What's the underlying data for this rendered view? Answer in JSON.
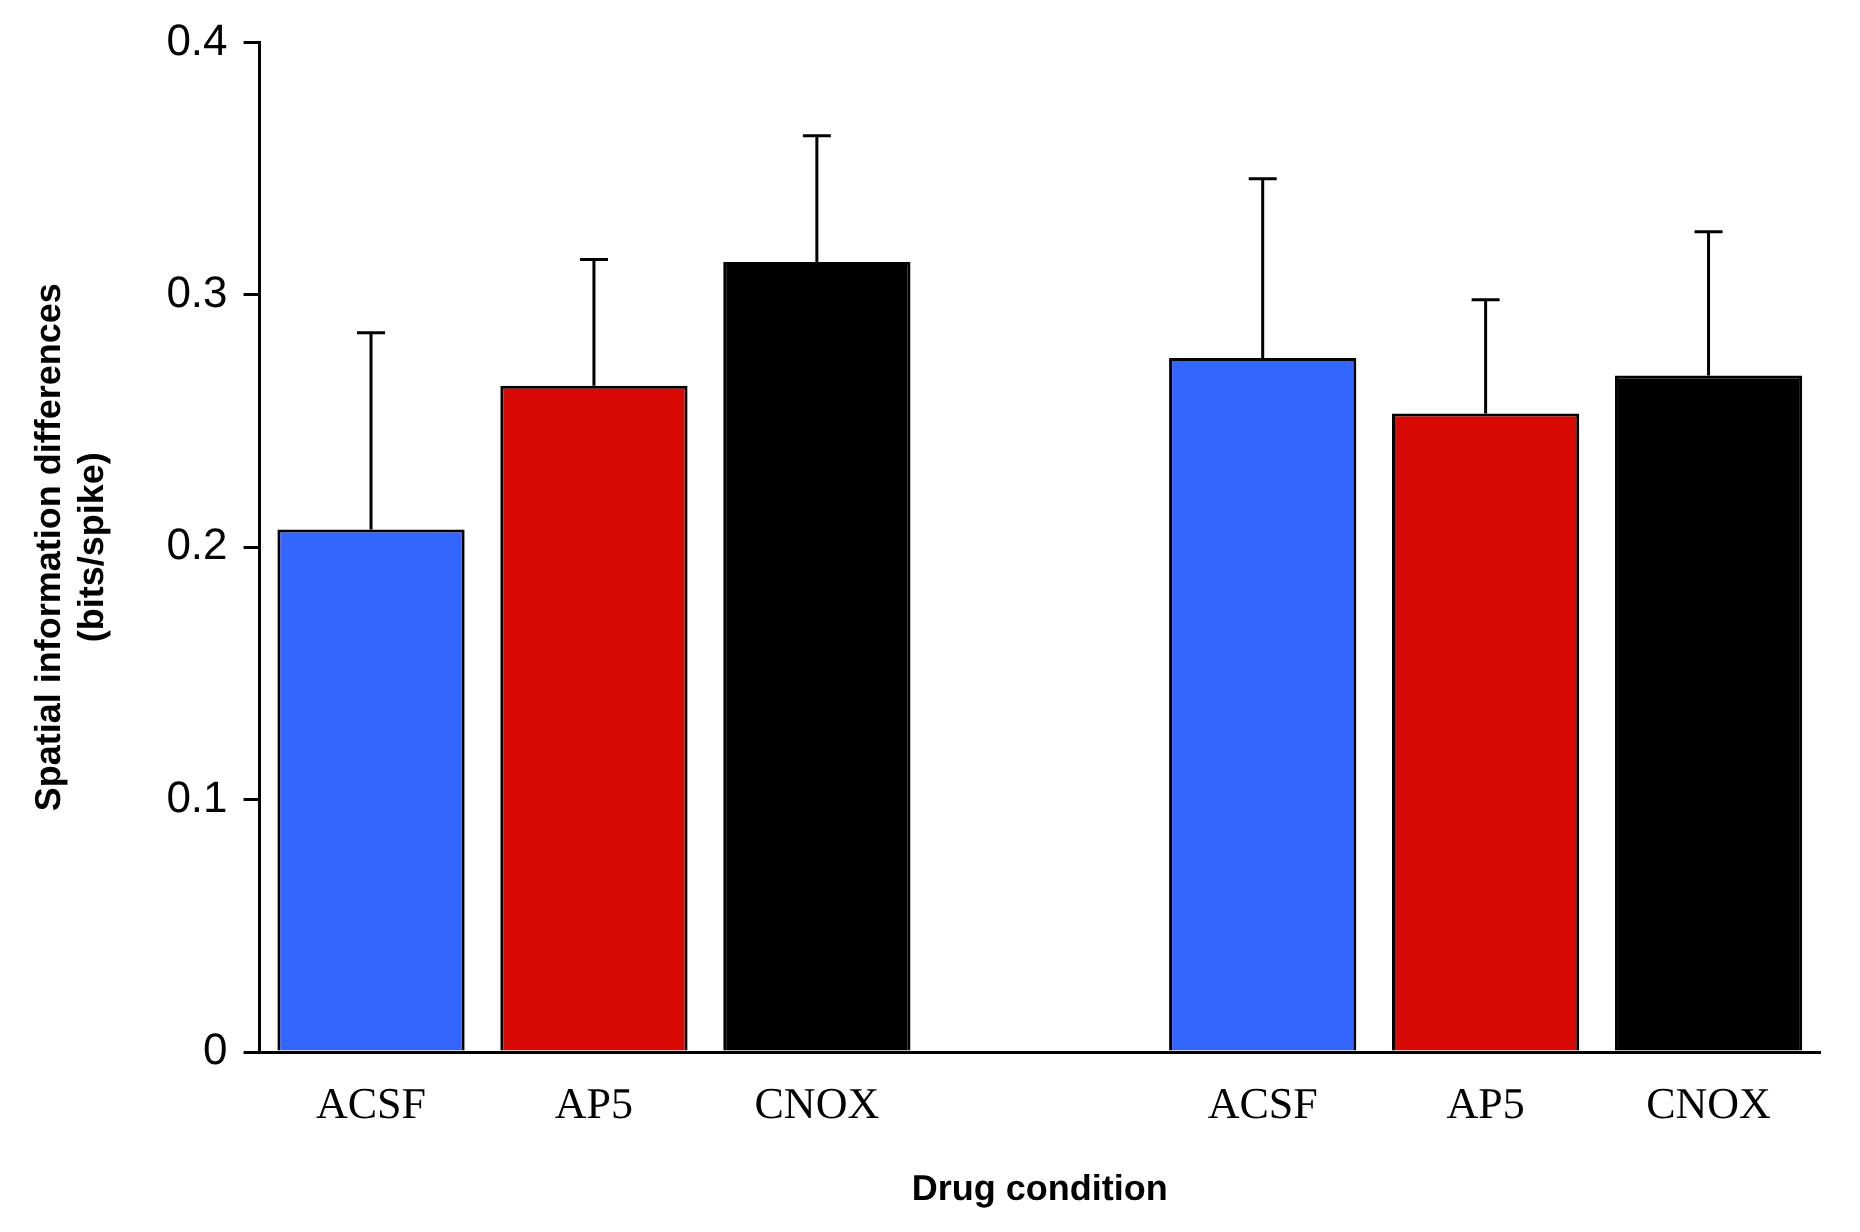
{
  "chart_data": {
    "type": "bar",
    "xlabel": "Drug condition",
    "ylabel": "Spatial information differences\n(bits/spike)",
    "categories": [
      "ACSF",
      "AP5",
      "CNOX",
      null,
      "ACSF",
      "AP5",
      "CNOX"
    ],
    "values": [
      0.207,
      0.264,
      0.313,
      null,
      0.275,
      0.253,
      0.268
    ],
    "colors": [
      "#3366ff",
      "#d90a03",
      "#000000",
      null,
      "#3366ff",
      "#d90a03",
      "#000000"
    ],
    "errors": [
      [
        0.207,
        0.285
      ],
      [
        0.264,
        0.314
      ],
      [
        0.313,
        0.363
      ],
      null,
      [
        0.275,
        0.346
      ],
      [
        0.253,
        0.298
      ],
      [
        0.268,
        0.325
      ]
    ],
    "ylim": [
      0,
      0.4
    ],
    "yticks": [
      0,
      0.1,
      0.2,
      0.3,
      0.4
    ],
    "grid": false,
    "legend": false
  }
}
